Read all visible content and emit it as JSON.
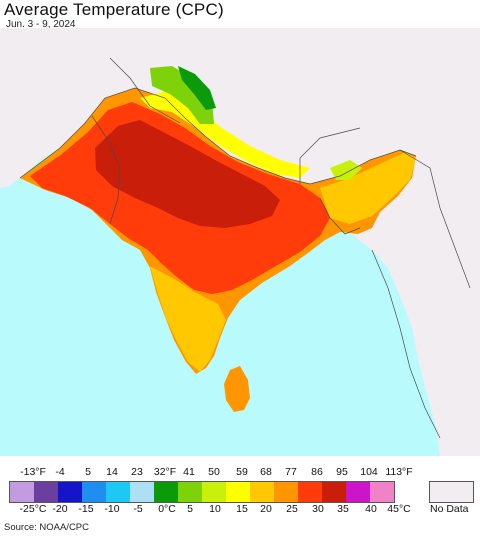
{
  "header": {
    "title": "Average Temperature (CPC)",
    "subtitle": "Jun. 3 - 9, 2024"
  },
  "legend": {
    "fahrenheit_ticks": [
      "-13°F",
      "-4",
      "5",
      "14",
      "23",
      "32°F",
      "41",
      "50",
      "59",
      "68",
      "77",
      "86",
      "95",
      "104",
      "113°F"
    ],
    "celsius_ticks": [
      "-25°C",
      "-20",
      "-15",
      "-10",
      "-5",
      "0°C",
      "5",
      "10",
      "15",
      "20",
      "25",
      "30",
      "35",
      "40",
      "45°C"
    ],
    "colors": [
      "#c39be0",
      "#6b3fa0",
      "#1414c8",
      "#1e8ff0",
      "#1ec8f5",
      "#aee0f5",
      "#0a9a0a",
      "#7dd20a",
      "#c8f00a",
      "#ffff00",
      "#ffc800",
      "#ff9600",
      "#ff3c0a",
      "#c81e0a",
      "#cc14c8",
      "#f082c8"
    ],
    "no_data_label": "No Data",
    "no_data_color": "#f1edf1"
  },
  "map": {
    "ocean_color": "#b9fbfd",
    "land_no_data_color": "#f1edf1",
    "border_color": "#4a4a4a"
  },
  "source": "Source: NOAA/CPC"
}
